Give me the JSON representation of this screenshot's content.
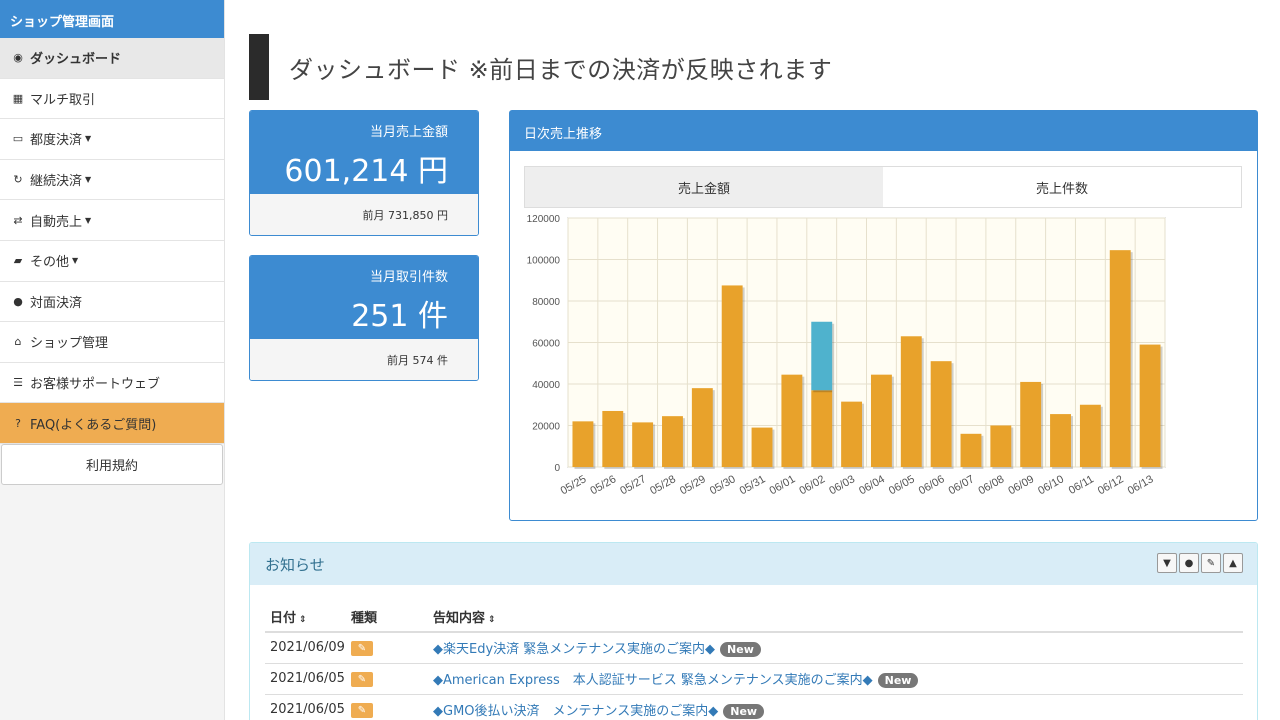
{
  "sidebar": {
    "header": "ショップ管理画面",
    "items": [
      {
        "icon": "dashboard-icon",
        "glyph": "◉",
        "label": "ダッシュボード",
        "caret": false
      },
      {
        "icon": "grid-icon",
        "glyph": "▦",
        "label": "マルチ取引",
        "caret": false
      },
      {
        "icon": "credit-card-icon",
        "glyph": "▭",
        "label": "都度決済",
        "caret": true
      },
      {
        "icon": "refresh-icon",
        "glyph": "↻",
        "label": "継続決済",
        "caret": true
      },
      {
        "icon": "sync-icon",
        "glyph": "⇄",
        "label": "自動売上",
        "caret": true
      },
      {
        "icon": "folder-open-icon",
        "glyph": "▰",
        "label": "その他",
        "caret": true
      },
      {
        "icon": "user-icon",
        "glyph": "●",
        "label": "対面決済",
        "caret": false
      },
      {
        "icon": "home-icon",
        "glyph": "⌂",
        "label": "ショップ管理",
        "caret": false
      },
      {
        "icon": "list-icon",
        "glyph": "☰",
        "label": "お客様サポートウェブ",
        "caret": false
      },
      {
        "icon": "question-circle-icon",
        "glyph": "?",
        "label": "FAQ(よくあるご質問)",
        "caret": false
      }
    ],
    "terms": "利用規約"
  },
  "page_title": "ダッシュボード ※前日までの決済が反映されます",
  "stats": {
    "sales": {
      "label": "当月売上金額",
      "value": "601,214 円",
      "prev": "前月 731,850 円"
    },
    "count": {
      "label": "当月取引件数",
      "value": "251 件",
      "prev": "前月 574 件"
    }
  },
  "chart_panel": {
    "title": "日次売上推移",
    "tabs": [
      "売上金額",
      "売上件数"
    ]
  },
  "chart_data": {
    "type": "bar",
    "categories": [
      "05/25",
      "05/26",
      "05/27",
      "05/28",
      "05/29",
      "05/30",
      "05/31",
      "06/01",
      "06/02",
      "06/03",
      "06/04",
      "06/05",
      "06/06",
      "06/07",
      "06/08",
      "06/09",
      "06/10",
      "06/11",
      "06/12",
      "06/13"
    ],
    "series": [
      {
        "values": [
          22000,
          27000,
          21500,
          24500,
          38000,
          87500,
          19000,
          44500,
          37000,
          31500,
          44500,
          63000,
          51000,
          16000,
          20000,
          41000,
          25500,
          30000,
          104500,
          59000
        ],
        "color": "#e8a22b"
      },
      {
        "values": [
          0,
          0,
          0,
          0,
          0,
          0,
          0,
          0,
          33000,
          0,
          0,
          0,
          0,
          0,
          0,
          0,
          0,
          0,
          0,
          0
        ],
        "color": "#4fb2cd"
      }
    ],
    "stacked": true,
    "ylim": [
      0,
      120000
    ],
    "yticks": [
      "0",
      "20000",
      "40000",
      "60000",
      "80000",
      "100000",
      "120000"
    ],
    "grid": true
  },
  "notice": {
    "title": "お知らせ",
    "tools": [
      "filter-icon",
      "download-icon",
      "wrench-icon",
      "warning-icon"
    ],
    "headers": [
      "日付",
      "種類",
      "告知内容"
    ],
    "rows": [
      {
        "date": "2021/06/09",
        "text": "◆楽天Edy決済 緊急メンテナンス実施のご案内◆",
        "badge": "New"
      },
      {
        "date": "2021/06/05",
        "text": "◆American Express　本人認証サービス 緊急メンテナンス実施のご案内◆",
        "badge": "New"
      },
      {
        "date": "2021/06/05",
        "text": "◆GMO後払い決済　メンテナンス実施のご案内◆",
        "badge": "New"
      }
    ]
  }
}
